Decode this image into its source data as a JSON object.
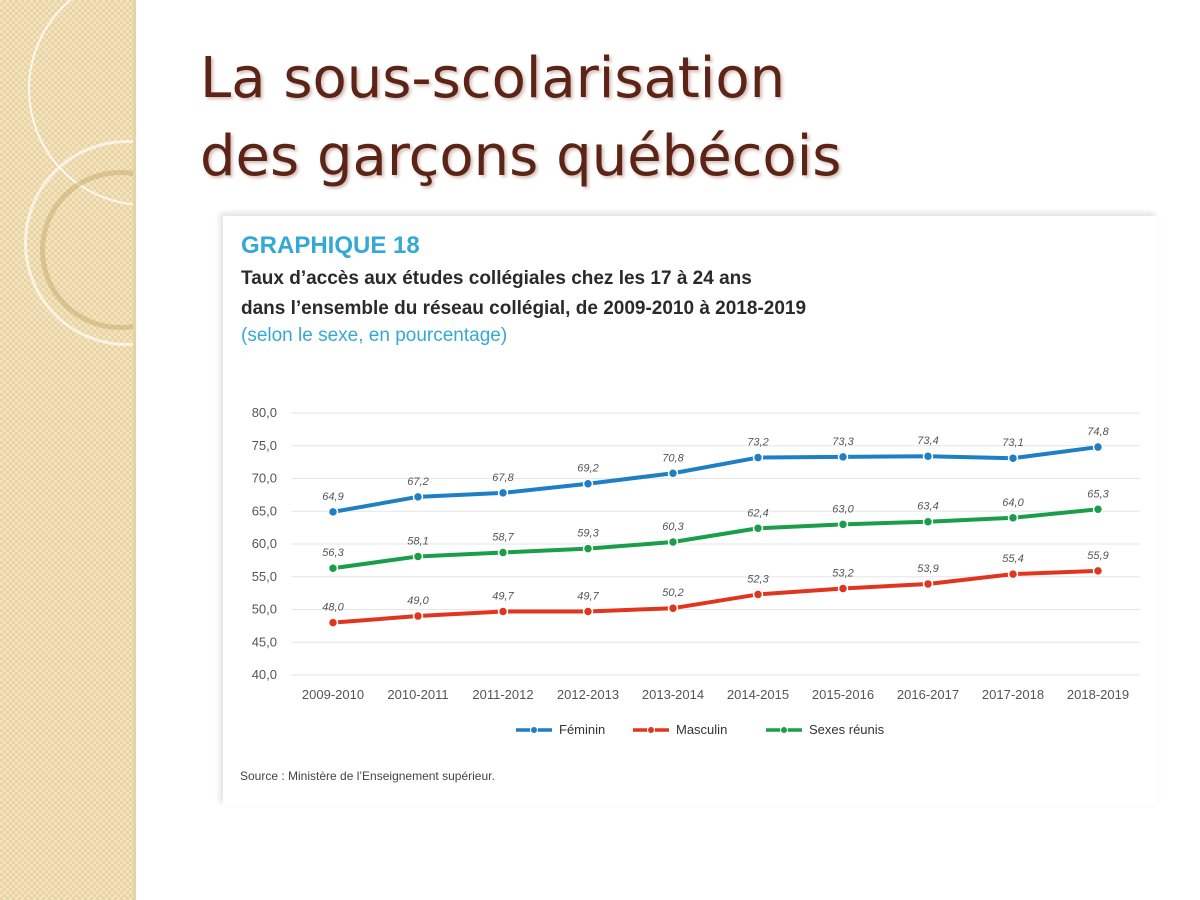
{
  "slide": {
    "title_line1": "La sous-scolarisation",
    "title_line2": "des garçons québécois"
  },
  "graph": {
    "label": "GRAPHIQUE 18",
    "title_line1": "Taux d’accès aux études collégiales chez les 17 à 24 ans",
    "title_line2": "dans l’ensemble du réseau collégial, de 2009-2010 à 2018-2019",
    "subtitle": "(selon le sexe, en pourcentage)",
    "source": "Source : Ministère de l’Enseignement supérieur."
  },
  "chart_data": {
    "type": "line",
    "title": "Taux d’accès aux études collégiales chez les 17 à 24 ans dans l’ensemble du réseau collégial, de 2009-2010 à 2018-2019",
    "xlabel": "",
    "ylabel": "",
    "ylim": [
      40,
      80
    ],
    "yticks": [
      "80,0",
      "75,0",
      "70,0",
      "65,0",
      "60,0",
      "55,0",
      "50,0",
      "45,0",
      "40,0"
    ],
    "grid": true,
    "legend_position": "bottom",
    "categories": [
      "2009-2010",
      "2010-2011",
      "2011-2012",
      "2012-2013",
      "2013-2014",
      "2014-2015",
      "2015-2016",
      "2016-2017",
      "2017-2018",
      "2018-2019"
    ],
    "series": [
      {
        "name": "Féminin",
        "color": "#1f7fc4",
        "values": [
          64.9,
          67.2,
          67.8,
          69.2,
          70.8,
          73.2,
          73.3,
          73.4,
          73.1,
          74.8
        ],
        "labels": [
          "64,9",
          "67,2",
          "67,8",
          "69,2",
          "70,8",
          "73,2",
          "73,3",
          "73,4",
          "73,1",
          "74,8"
        ]
      },
      {
        "name": "Masculin",
        "color": "#e0361f",
        "values": [
          48.0,
          49.0,
          49.7,
          49.7,
          50.2,
          52.3,
          53.2,
          53.9,
          55.4,
          55.9
        ],
        "labels": [
          "48,0",
          "49,0",
          "49,7",
          "49,7",
          "50,2",
          "52,3",
          "53,2",
          "53,9",
          "55,4",
          "55,9"
        ]
      },
      {
        "name": "Sexes réunis",
        "color": "#1a9e4a",
        "values": [
          56.3,
          58.1,
          58.7,
          59.3,
          60.3,
          62.4,
          63.0,
          63.4,
          64.0,
          65.3
        ],
        "labels": [
          "56,3",
          "58,1",
          "58,7",
          "59,3",
          "60,3",
          "62,4",
          "63,0",
          "63,4",
          "64,0",
          "65,3"
        ]
      }
    ]
  }
}
